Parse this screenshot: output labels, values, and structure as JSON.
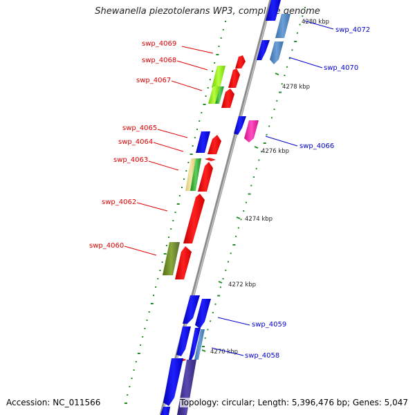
{
  "title": "Shewanella piezotolerans WP3, complete genome",
  "accession_text": "Accession: NC_011566",
  "summary_text": "Topology: circular; Length: 5,396,476 bp; Genes: 5,047",
  "colors": {
    "backbone": "#808080",
    "forward_label": "#dd0000",
    "reverse_label": "#0000cc",
    "tick": "#228b22"
  },
  "scale_ticks": [
    "4270 kbp",
    "4272 kbp",
    "4274 kbp",
    "4276 kbp",
    "4278 kbp",
    "4280 kbp"
  ],
  "forward_labels": [
    "swp_4069",
    "swp_4068",
    "swp_4067",
    "swp_4065",
    "swp_4064",
    "swp_4063",
    "swp_4062",
    "swp_4060"
  ],
  "reverse_labels": [
    "swp_4072",
    "swp_4070",
    "swp_4066",
    "swp_4059",
    "swp_4058"
  ]
}
